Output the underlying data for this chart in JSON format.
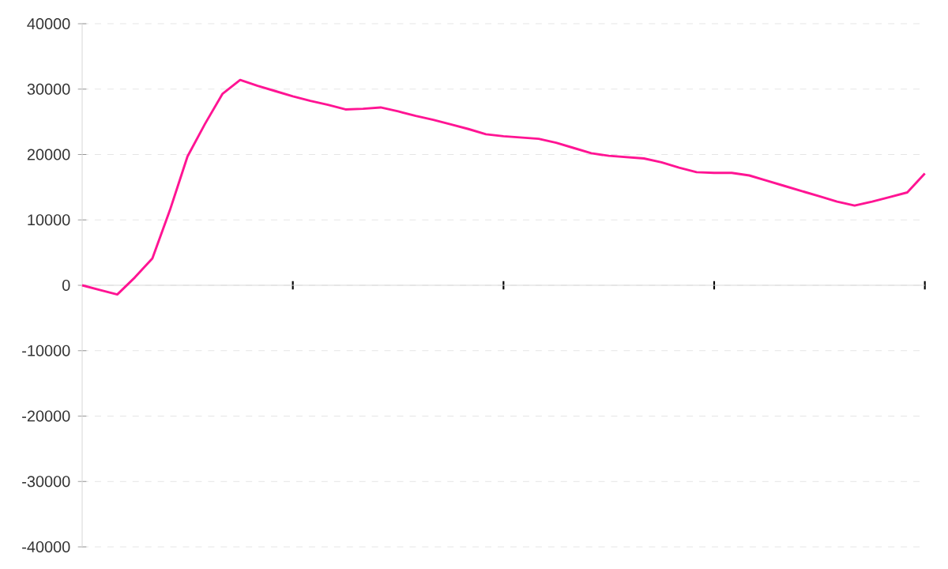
{
  "chart_data": {
    "type": "line",
    "categories": [
      null,
      null,
      null,
      null,
      null,
      null,
      null,
      null,
      null,
      null,
      null,
      null,
      null,
      null,
      null,
      null,
      null,
      null,
      null,
      null,
      null,
      null,
      null,
      null,
      null,
      null,
      null,
      null,
      null,
      null,
      null,
      null,
      null,
      null,
      null,
      null,
      null,
      null,
      null,
      null,
      null,
      null,
      null,
      null,
      null,
      null,
      null,
      null,
      null
    ],
    "values": [
      0,
      -700,
      -1400,
      1200,
      4100,
      11500,
      19700,
      24700,
      29300,
      31400,
      30500,
      29700,
      28900,
      28200,
      27600,
      26900,
      27000,
      27200,
      26600,
      25900,
      25300,
      24600,
      23900,
      23100,
      22800,
      22600,
      22400,
      21800,
      21000,
      20200,
      19800,
      19600,
      19400,
      18800,
      18000,
      17300,
      17200,
      17200,
      16800,
      16000,
      15200,
      14400,
      13600,
      12800,
      12200,
      12800,
      13500,
      14200,
      17100
    ],
    "color": "#ff1493",
    "ylim": [
      -40000,
      40000
    ],
    "yticks": [
      -40000,
      -30000,
      -20000,
      -10000,
      0,
      10000,
      20000,
      30000,
      40000
    ],
    "grid": "y",
    "marker": "none",
    "line_style": "solid"
  }
}
